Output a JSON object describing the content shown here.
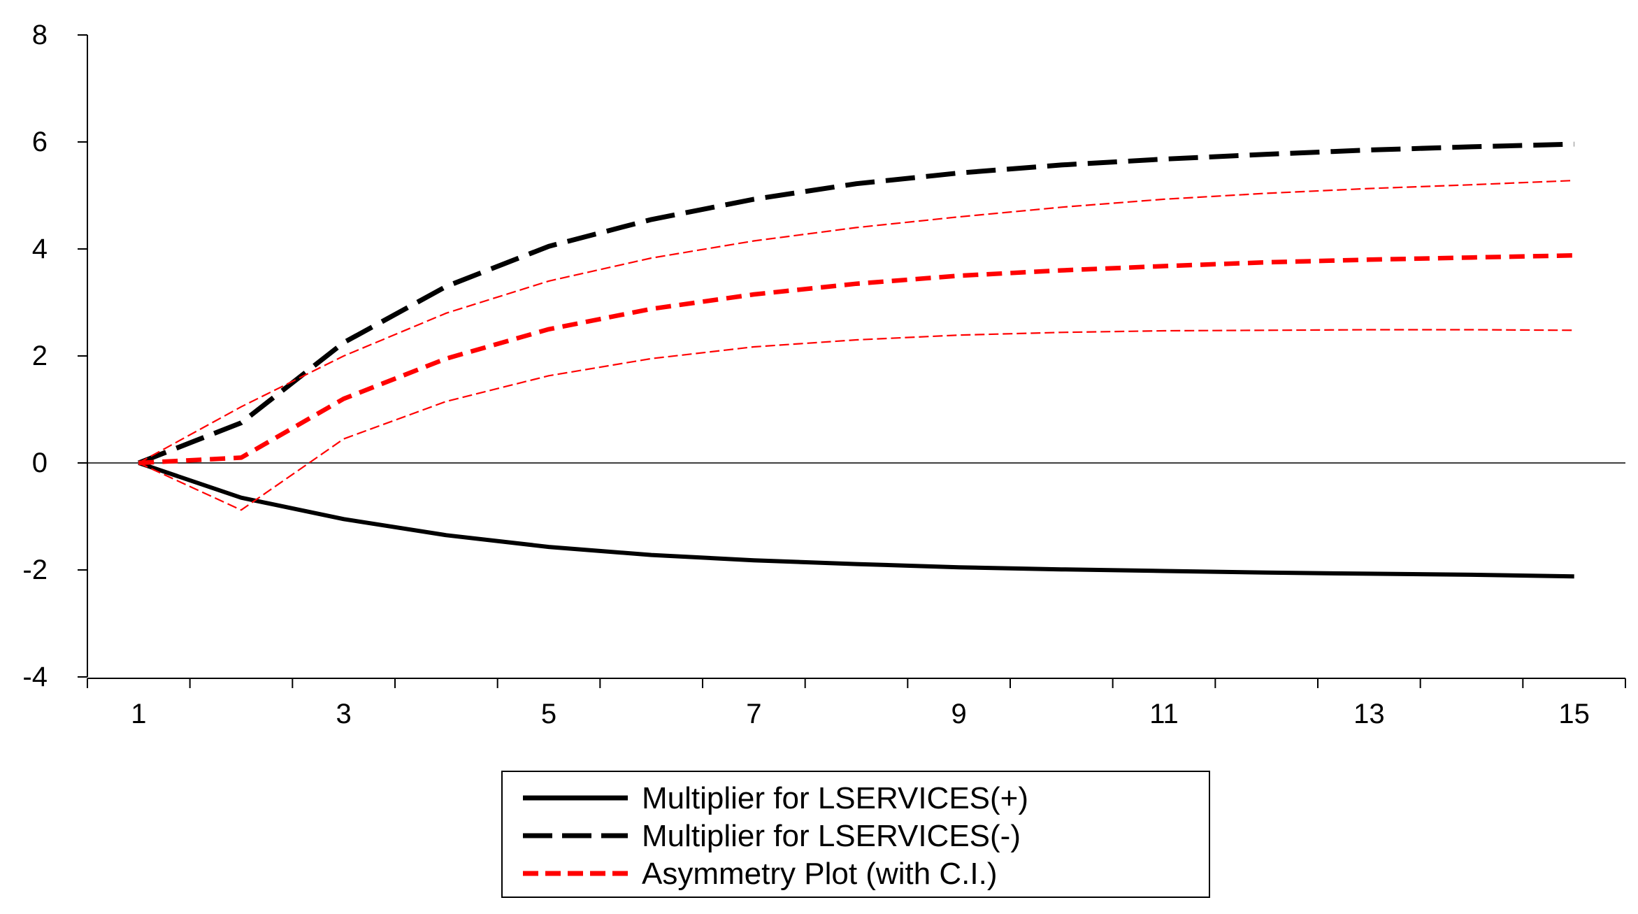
{
  "chart_data": {
    "type": "line",
    "x": [
      1,
      2,
      3,
      4,
      5,
      6,
      7,
      8,
      9,
      10,
      11,
      12,
      13,
      14,
      15
    ],
    "x_tick_labels": [
      "1",
      "3",
      "5",
      "7",
      "9",
      "11",
      "13",
      "15"
    ],
    "y_tick_labels": [
      "8",
      "6",
      "4",
      "2",
      "0",
      "-2",
      "-4"
    ],
    "ylim": [
      -4,
      8
    ],
    "xlim": [
      0.5,
      15.5
    ],
    "grid": false,
    "legend_position": "bottom-center",
    "series": [
      {
        "name": "Multiplier for LSERVICES(+)",
        "style": "solid",
        "color": "#000000",
        "values": [
          0,
          -0.65,
          -1.05,
          -1.35,
          -1.57,
          -1.72,
          -1.82,
          -1.89,
          -1.95,
          -1.99,
          -2.02,
          -2.05,
          -2.07,
          -2.09,
          -2.12
        ]
      },
      {
        "name": "Multiplier for LSERVICES(-)",
        "style": "long-dash",
        "color": "#000000",
        "values": [
          0,
          0.75,
          2.25,
          3.3,
          4.05,
          4.55,
          4.93,
          5.22,
          5.42,
          5.57,
          5.68,
          5.77,
          5.85,
          5.91,
          5.96
        ]
      },
      {
        "name": "Asymmetry Plot (with C.I.)",
        "style": "short-dash",
        "color": "#ff0000",
        "values": [
          0,
          0.1,
          1.2,
          1.95,
          2.5,
          2.88,
          3.15,
          3.35,
          3.5,
          3.6,
          3.68,
          3.75,
          3.8,
          3.84,
          3.88
        ]
      },
      {
        "style": "thin-dash",
        "color": "#ff0000",
        "values": [
          0,
          1.05,
          2.0,
          2.8,
          3.4,
          3.83,
          4.15,
          4.4,
          4.6,
          4.78,
          4.93,
          5.04,
          5.13,
          5.2,
          5.28
        ]
      },
      {
        "style": "thin-dash",
        "color": "#ff0000",
        "values": [
          0,
          -0.88,
          0.45,
          1.15,
          1.63,
          1.95,
          2.17,
          2.3,
          2.39,
          2.44,
          2.47,
          2.48,
          2.49,
          2.49,
          2.48
        ]
      }
    ],
    "legend": [
      {
        "label": "Multiplier for LSERVICES(+)",
        "style": "solid",
        "color": "#000000"
      },
      {
        "label": "Multiplier for LSERVICES(-)",
        "style": "long-dash",
        "color": "#000000"
      },
      {
        "label": "Asymmetry Plot (with C.I.)",
        "style": "short-dash",
        "color": "#ff0000"
      }
    ]
  }
}
